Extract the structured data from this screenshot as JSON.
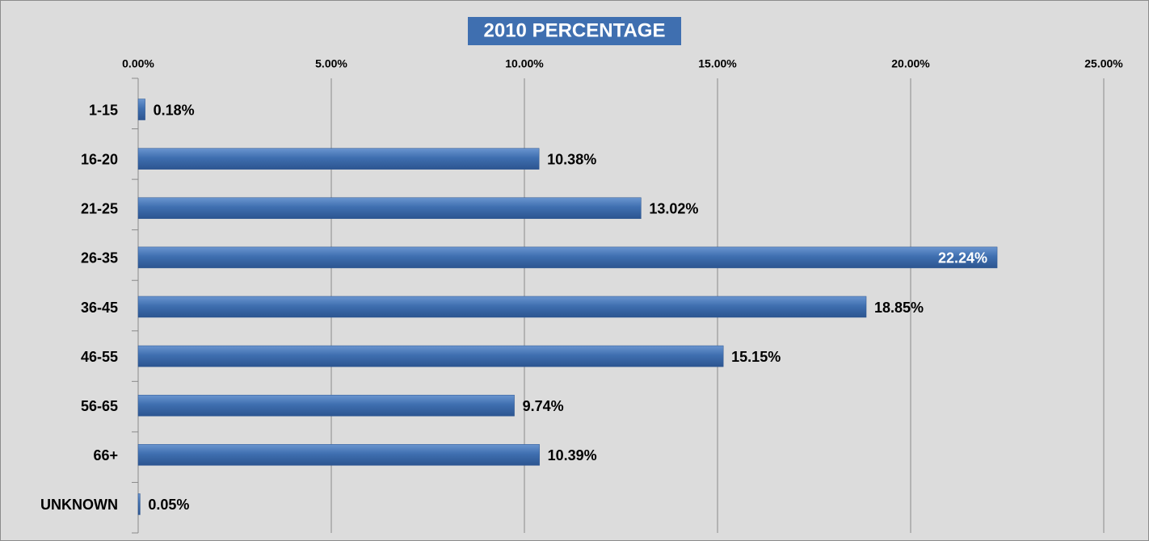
{
  "chart_data": {
    "type": "bar",
    "orientation": "horizontal",
    "title": "2010 PERCENTAGE",
    "categories": [
      "1-15",
      "16-20",
      "21-25",
      "26-35",
      "36-45",
      "46-55",
      "56-65",
      "66+",
      "UNKNOWN"
    ],
    "values": [
      0.18,
      10.38,
      13.02,
      22.24,
      18.85,
      15.15,
      9.74,
      10.39,
      0.05
    ],
    "value_labels": [
      "0.18%",
      "10.38%",
      "13.02%",
      "22.24%",
      "18.85%",
      "15.15%",
      "9.74%",
      "10.39%",
      "0.05%"
    ],
    "color": "#3f6fb0",
    "xlim": [
      0,
      25
    ],
    "xticks": [
      {
        "value": 0,
        "label": "0.00%"
      },
      {
        "value": 5,
        "label": "5.00%"
      },
      {
        "value": 10,
        "label": "10.00%"
      },
      {
        "value": 15,
        "label": "15.00%"
      },
      {
        "value": 20,
        "label": "20.00%"
      },
      {
        "value": 25,
        "label": "25.00%"
      }
    ],
    "grid": true
  }
}
